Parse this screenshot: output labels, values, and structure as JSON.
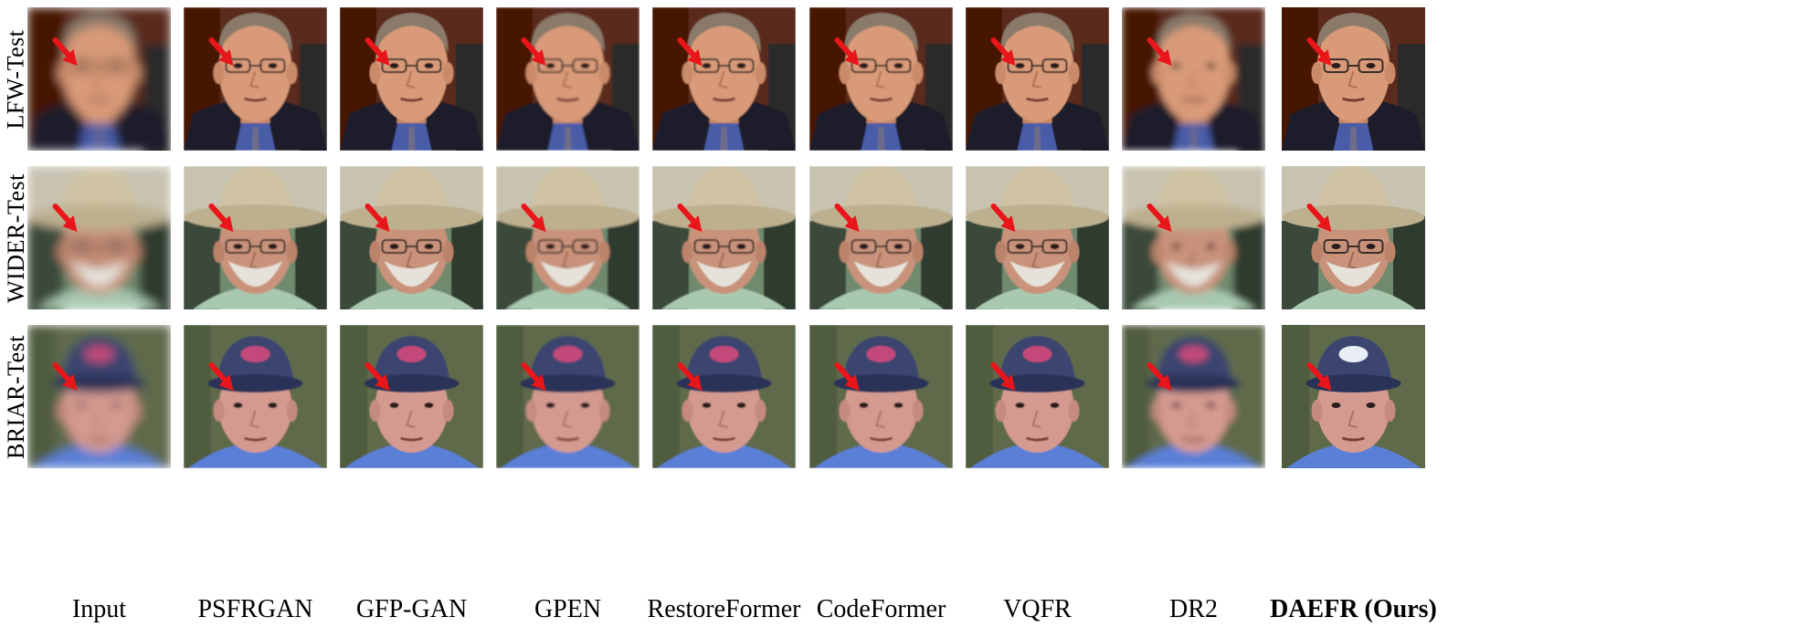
{
  "figure": {
    "rows": [
      {
        "label": "LFW-Test",
        "scene": "suit",
        "bg": "#5a2a1a",
        "skin": "#d89a78",
        "shirt": "#4a5ba8"
      },
      {
        "label": "WIDER-Test",
        "scene": "hat",
        "bg": "#6f8a6e",
        "skin": "#c9927a",
        "shirt": "#a8c8b0"
      },
      {
        "label": "BRIAR-Test",
        "scene": "cap",
        "bg": "#5e6b4c",
        "skin": "#d49a90",
        "shirt": "#5a7fd6"
      }
    ],
    "columns": [
      {
        "label": "Input",
        "bold": false,
        "blur": 2.2
      },
      {
        "label": "PSFRGAN",
        "bold": false,
        "blur": 0.3
      },
      {
        "label": "GFP-GAN",
        "bold": false,
        "blur": 0.2
      },
      {
        "label": "GPEN",
        "bold": false,
        "blur": 0.4
      },
      {
        "label": "RestoreFormer",
        "bold": false,
        "blur": 0.3
      },
      {
        "label": "CodeFormer",
        "bold": false,
        "blur": 0.3
      },
      {
        "label": "VQFR",
        "bold": false,
        "blur": 0.2
      },
      {
        "label": "DR2",
        "bold": false,
        "blur": 1.6
      },
      {
        "label": "DAEFR (Ours)",
        "bold": true,
        "blur": 0.1
      }
    ],
    "arrow_color": "#e8161a"
  }
}
